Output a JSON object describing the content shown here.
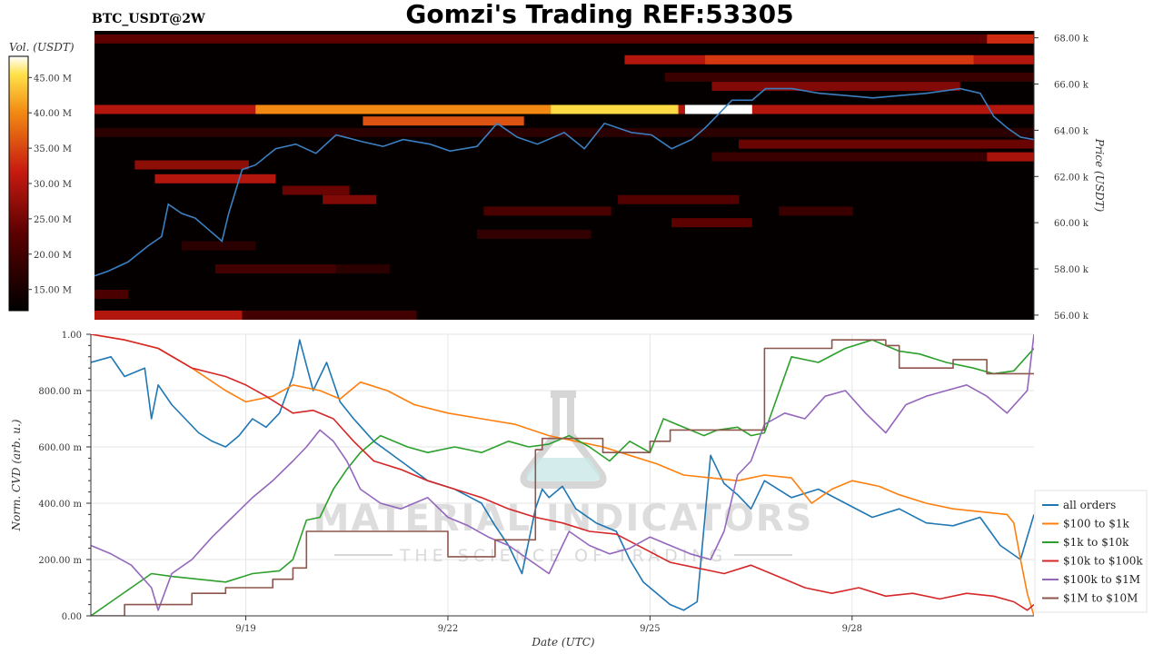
{
  "header": {
    "title": "Gomzi's Trading REF:53305",
    "pair": "BTC_USDT@2W"
  },
  "watermark": {
    "name": "MATERIAL INDICATORS",
    "tagline": "THE SCIENCE OF TRADING"
  },
  "colors": {
    "heat_low": "#000000",
    "heat_mid": "#b01010",
    "heat_high": "#ffe24a",
    "price_line": "#3b7fc0",
    "all_orders": "#1f77b4",
    "100_1k": "#ff7f0e",
    "1k_10k": "#2ca02c",
    "10k_100k": "#d62728",
    "100k_1M": "#9467bd",
    "1M_10M": "#8c564b"
  },
  "chart_data": [
    {
      "type": "heatmap",
      "title": "Gomzi's Trading REF:53305",
      "subtitle": "BTC_USDT@2W",
      "colorbar_label": "Vol. (USDT)",
      "colorbar_ticks": [
        "15.00 M",
        "20.00 M",
        "25.00 M",
        "30.00 M",
        "35.00 M",
        "40.00 M",
        "45.00 M"
      ],
      "colorbar_range": [
        12,
        48
      ],
      "ylabel": "Price (USDT)",
      "y_ticks": [
        "56.00 k",
        "58.00 k",
        "60.00 k",
        "62.00 k",
        "64.00 k",
        "66.00 k",
        "68.00 k"
      ],
      "ylim": [
        55800,
        68300
      ],
      "xlim": [
        0,
        14
      ],
      "bands": [
        {
          "price": 67950,
          "start": 0,
          "end": 14,
          "vol": 23
        },
        {
          "price": 67950,
          "start": 13.3,
          "end": 14,
          "vol": 33
        },
        {
          "price": 67050,
          "start": 7.9,
          "end": 14,
          "vol": 30
        },
        {
          "price": 67050,
          "start": 9.1,
          "end": 13.1,
          "vol": 34
        },
        {
          "price": 66300,
          "start": 8.5,
          "end": 14,
          "vol": 19
        },
        {
          "price": 65900,
          "start": 9.2,
          "end": 12.9,
          "vol": 26
        },
        {
          "price": 64900,
          "start": 0,
          "end": 14,
          "vol": 30
        },
        {
          "price": 64900,
          "start": 2.4,
          "end": 8.7,
          "vol": 40
        },
        {
          "price": 64900,
          "start": 6.8,
          "end": 8.7,
          "vol": 45
        },
        {
          "price": 64900,
          "start": 8.8,
          "end": 9.8,
          "vol": 48
        },
        {
          "price": 64400,
          "start": 4,
          "end": 6.4,
          "vol": 36
        },
        {
          "price": 63900,
          "start": 0,
          "end": 14,
          "vol": 17
        },
        {
          "price": 63400,
          "start": 9.6,
          "end": 14,
          "vol": 24
        },
        {
          "price": 62850,
          "start": 9.2,
          "end": 14,
          "vol": 19
        },
        {
          "price": 62850,
          "start": 13.3,
          "end": 14,
          "vol": 29
        },
        {
          "price": 62500,
          "start": 0.6,
          "end": 2.3,
          "vol": 27
        },
        {
          "price": 61900,
          "start": 0.9,
          "end": 2.7,
          "vol": 30
        },
        {
          "price": 61400,
          "start": 2.8,
          "end": 3.8,
          "vol": 24
        },
        {
          "price": 61000,
          "start": 3.4,
          "end": 4.2,
          "vol": 26
        },
        {
          "price": 61000,
          "start": 7.8,
          "end": 9.6,
          "vol": 22
        },
        {
          "price": 60500,
          "start": 5.8,
          "end": 7.7,
          "vol": 21
        },
        {
          "price": 60500,
          "start": 10.2,
          "end": 11.3,
          "vol": 19
        },
        {
          "price": 60000,
          "start": 8.6,
          "end": 9.8,
          "vol": 23
        },
        {
          "price": 59500,
          "start": 5.7,
          "end": 7.4,
          "vol": 18
        },
        {
          "price": 59000,
          "start": 1.3,
          "end": 2.4,
          "vol": 17
        },
        {
          "price": 58000,
          "start": 1.8,
          "end": 3.6,
          "vol": 20
        },
        {
          "price": 58000,
          "start": 3.6,
          "end": 4.4,
          "vol": 17
        },
        {
          "price": 56900,
          "start": 0,
          "end": 0.5,
          "vol": 21
        },
        {
          "price": 56000,
          "start": 0,
          "end": 2.2,
          "vol": 30
        },
        {
          "price": 56000,
          "start": 2.2,
          "end": 4.8,
          "vol": 20
        }
      ],
      "price_series": {
        "x": [
          0,
          0.2,
          0.5,
          0.8,
          1.0,
          1.1,
          1.3,
          1.5,
          1.7,
          1.9,
          2.0,
          2.2,
          2.4,
          2.7,
          3.0,
          3.3,
          3.6,
          4.0,
          4.3,
          4.6,
          5.0,
          5.3,
          5.7,
          6.0,
          6.3,
          6.6,
          7.0,
          7.3,
          7.6,
          8.0,
          8.3,
          8.6,
          8.9,
          9.1,
          9.3,
          9.5,
          9.8,
          10.0,
          10.4,
          10.8,
          11.2,
          11.6,
          12.0,
          12.4,
          12.9,
          13.2,
          13.4,
          13.6,
          13.8,
          14.0
        ],
        "y": [
          57700,
          57900,
          58300,
          59000,
          59400,
          60800,
          60400,
          60200,
          59700,
          59200,
          60400,
          62300,
          62500,
          63200,
          63400,
          63000,
          63800,
          63500,
          63300,
          63600,
          63400,
          63100,
          63300,
          64300,
          63700,
          63400,
          63900,
          63200,
          64300,
          63900,
          63800,
          63200,
          63600,
          64100,
          64700,
          65300,
          65300,
          65800,
          65800,
          65600,
          65500,
          65400,
          65500,
          65600,
          65800,
          65600,
          64600,
          64100,
          63700,
          63600
        ]
      },
      "date_ticks": [
        "9/19",
        "9/22",
        "9/25",
        "9/28"
      ],
      "date_tick_positions": [
        2.3,
        5.3,
        8.3,
        11.3
      ]
    },
    {
      "type": "line",
      "xlabel": "Date (UTC)",
      "ylabel": "Norm. CVD (arb. u.)",
      "y_ticks": [
        "0.00",
        "200.00 m",
        "400.00 m",
        "600.00 m",
        "800.00 m",
        "1.00"
      ],
      "ylim": [
        0,
        1
      ],
      "xlim": [
        0,
        14
      ],
      "x_ticks": [
        "9/19",
        "9/22",
        "9/25",
        "9/28"
      ],
      "x_tick_positions": [
        2.3,
        5.3,
        8.3,
        11.3
      ],
      "legend_position": "bottom-right",
      "series": [
        {
          "name": "all orders",
          "colorKey": "all_orders",
          "step": false,
          "x": [
            0,
            0.3,
            0.5,
            0.8,
            0.9,
            1.0,
            1.2,
            1.4,
            1.6,
            1.8,
            2.0,
            2.2,
            2.4,
            2.6,
            2.8,
            3.0,
            3.1,
            3.3,
            3.5,
            3.7,
            3.9,
            4.2,
            4.6,
            5.0,
            5.4,
            5.8,
            6.0,
            6.2,
            6.4,
            6.6,
            6.7,
            6.8,
            7.0,
            7.2,
            7.5,
            7.8,
            8.0,
            8.2,
            8.4,
            8.6,
            8.8,
            9.0,
            9.2,
            9.4,
            9.6,
            9.8,
            10.0,
            10.4,
            10.8,
            11.2,
            11.6,
            12.0,
            12.4,
            12.8,
            13.2,
            13.5,
            13.8,
            14.0
          ],
          "y": [
            0.9,
            0.92,
            0.85,
            0.88,
            0.7,
            0.82,
            0.75,
            0.7,
            0.65,
            0.62,
            0.6,
            0.64,
            0.7,
            0.67,
            0.72,
            0.85,
            0.98,
            0.8,
            0.9,
            0.76,
            0.7,
            0.62,
            0.55,
            0.48,
            0.45,
            0.4,
            0.32,
            0.25,
            0.15,
            0.38,
            0.45,
            0.42,
            0.46,
            0.38,
            0.33,
            0.3,
            0.2,
            0.12,
            0.08,
            0.04,
            0.02,
            0.05,
            0.57,
            0.47,
            0.43,
            0.38,
            0.48,
            0.42,
            0.45,
            0.4,
            0.35,
            0.38,
            0.33,
            0.32,
            0.35,
            0.25,
            0.2,
            0.36
          ]
        },
        {
          "name": "$100 to $1k",
          "colorKey": "100_1k",
          "step": false,
          "x": [
            0,
            0.5,
            1.0,
            1.5,
            2.0,
            2.3,
            2.7,
            3.0,
            3.4,
            3.7,
            4.0,
            4.4,
            4.8,
            5.3,
            5.8,
            6.3,
            6.8,
            7.2,
            7.6,
            8.0,
            8.4,
            8.8,
            9.2,
            9.6,
            10.0,
            10.4,
            10.7,
            11.0,
            11.3,
            11.7,
            12.0,
            12.4,
            12.8,
            13.2,
            13.6,
            13.7,
            13.8,
            13.9,
            14.0
          ],
          "y": [
            1.0,
            0.98,
            0.95,
            0.88,
            0.8,
            0.76,
            0.78,
            0.82,
            0.8,
            0.77,
            0.83,
            0.8,
            0.75,
            0.72,
            0.7,
            0.68,
            0.64,
            0.62,
            0.6,
            0.57,
            0.54,
            0.5,
            0.49,
            0.48,
            0.5,
            0.49,
            0.4,
            0.45,
            0.48,
            0.46,
            0.43,
            0.4,
            0.38,
            0.37,
            0.36,
            0.33,
            0.2,
            0.08,
            0.0
          ]
        },
        {
          "name": "$1k to $10k",
          "colorKey": "1k_10k",
          "step": false,
          "x": [
            0,
            0.3,
            0.6,
            0.9,
            1.2,
            1.6,
            2.0,
            2.4,
            2.8,
            3.0,
            3.2,
            3.4,
            3.6,
            3.8,
            4.0,
            4.3,
            4.7,
            5.0,
            5.4,
            5.8,
            6.2,
            6.5,
            6.8,
            7.1,
            7.4,
            7.7,
            8.0,
            8.3,
            8.5,
            8.7,
            8.9,
            9.1,
            9.3,
            9.6,
            9.8,
            10.0,
            10.4,
            10.8,
            11.2,
            11.6,
            12.0,
            12.3,
            12.7,
            13.1,
            13.4,
            13.7,
            14.0
          ],
          "y": [
            0.0,
            0.05,
            0.1,
            0.15,
            0.14,
            0.13,
            0.12,
            0.15,
            0.16,
            0.2,
            0.34,
            0.35,
            0.45,
            0.52,
            0.58,
            0.64,
            0.6,
            0.58,
            0.6,
            0.58,
            0.62,
            0.6,
            0.61,
            0.64,
            0.6,
            0.55,
            0.62,
            0.58,
            0.7,
            0.68,
            0.66,
            0.64,
            0.66,
            0.67,
            0.64,
            0.65,
            0.92,
            0.9,
            0.95,
            0.98,
            0.94,
            0.93,
            0.9,
            0.88,
            0.86,
            0.87,
            0.95
          ]
        },
        {
          "name": "$10k to $100k",
          "colorKey": "10k_100k",
          "step": false,
          "x": [
            0,
            0.5,
            1.0,
            1.5,
            2.0,
            2.3,
            2.6,
            3.0,
            3.3,
            3.6,
            3.9,
            4.2,
            4.6,
            5.0,
            5.4,
            5.8,
            6.2,
            6.6,
            7.0,
            7.4,
            7.8,
            8.2,
            8.6,
            9.0,
            9.4,
            9.8,
            10.2,
            10.6,
            11.0,
            11.4,
            11.8,
            12.2,
            12.6,
            13.0,
            13.4,
            13.7,
            13.9,
            14.0
          ],
          "y": [
            1.0,
            0.98,
            0.95,
            0.88,
            0.85,
            0.82,
            0.78,
            0.72,
            0.73,
            0.7,
            0.62,
            0.55,
            0.52,
            0.48,
            0.45,
            0.42,
            0.38,
            0.35,
            0.33,
            0.3,
            0.29,
            0.24,
            0.19,
            0.17,
            0.15,
            0.18,
            0.14,
            0.1,
            0.08,
            0.1,
            0.07,
            0.08,
            0.06,
            0.08,
            0.07,
            0.05,
            0.02,
            0.04
          ]
        },
        {
          "name": "$100k to $1M",
          "colorKey": "100k_1M",
          "step": false,
          "x": [
            0,
            0.3,
            0.6,
            0.9,
            1.0,
            1.2,
            1.5,
            1.8,
            2.1,
            2.4,
            2.7,
            3.0,
            3.2,
            3.4,
            3.6,
            3.8,
            4.0,
            4.3,
            4.6,
            5.0,
            5.3,
            5.6,
            5.9,
            6.2,
            6.5,
            6.8,
            7.1,
            7.4,
            7.7,
            8.0,
            8.3,
            8.6,
            8.9,
            9.2,
            9.4,
            9.6,
            9.8,
            10.0,
            10.3,
            10.6,
            10.9,
            11.2,
            11.5,
            11.8,
            12.1,
            12.4,
            12.7,
            13.0,
            13.3,
            13.6,
            13.9,
            14.0
          ],
          "y": [
            0.25,
            0.22,
            0.18,
            0.1,
            0.02,
            0.15,
            0.2,
            0.28,
            0.35,
            0.42,
            0.48,
            0.55,
            0.6,
            0.66,
            0.62,
            0.55,
            0.45,
            0.4,
            0.38,
            0.42,
            0.35,
            0.32,
            0.28,
            0.25,
            0.2,
            0.15,
            0.3,
            0.25,
            0.22,
            0.24,
            0.28,
            0.25,
            0.22,
            0.2,
            0.3,
            0.5,
            0.55,
            0.68,
            0.72,
            0.7,
            0.78,
            0.8,
            0.72,
            0.65,
            0.75,
            0.78,
            0.8,
            0.82,
            0.78,
            0.72,
            0.8,
            1.0
          ]
        },
        {
          "name": "$1M to $10M",
          "colorKey": "1M_10M",
          "step": true,
          "x": [
            0,
            0.5,
            1.0,
            1.5,
            2.0,
            2.7,
            3.0,
            3.2,
            4.0,
            4.5,
            5.0,
            5.3,
            5.8,
            6.0,
            6.6,
            6.7,
            7.2,
            7.6,
            8.0,
            8.3,
            8.6,
            9.0,
            9.3,
            9.8,
            10.0,
            10.6,
            11.0,
            11.8,
            12.0,
            12.8,
            13.3,
            14.0
          ],
          "y": [
            0.0,
            0.04,
            0.04,
            0.08,
            0.1,
            0.13,
            0.17,
            0.3,
            0.3,
            0.3,
            0.3,
            0.21,
            0.21,
            0.27,
            0.59,
            0.63,
            0.63,
            0.58,
            0.58,
            0.62,
            0.66,
            0.66,
            0.66,
            0.66,
            0.95,
            0.95,
            0.98,
            0.96,
            0.88,
            0.91,
            0.86,
            0.86
          ]
        }
      ]
    }
  ]
}
